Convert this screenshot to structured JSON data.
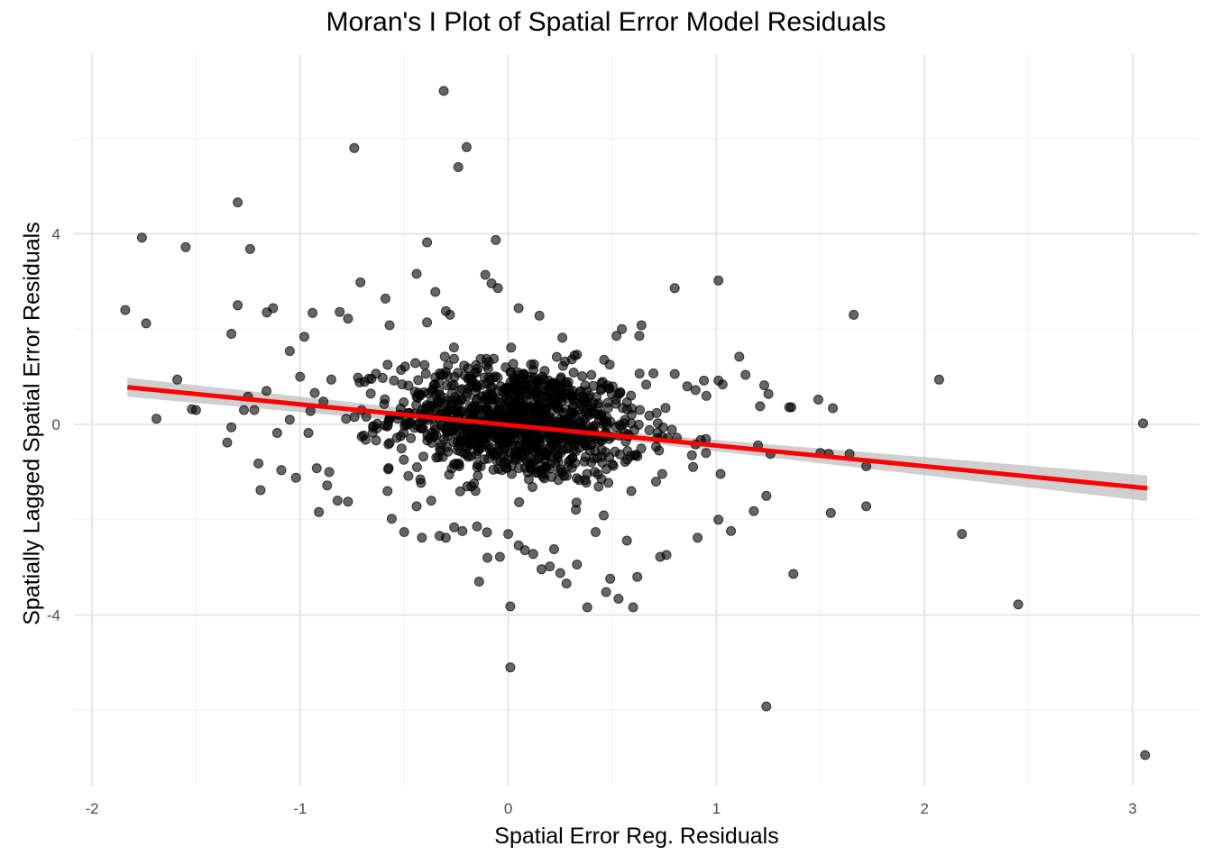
{
  "chart_data": {
    "type": "scatter",
    "title": "Moran's I Plot of Spatial Error Model Residuals",
    "xlabel": "Spatial Error Reg. Residuals",
    "ylabel": "Spatially Lagged Spatial Error Residuals",
    "xlim": [
      -2.0,
      3.15
    ],
    "ylim": [
      -7.65,
      7.65
    ],
    "x_ticks": [
      -2,
      -1,
      0,
      1,
      2,
      3
    ],
    "x_tick_labels": [
      "-2",
      "-1",
      "0",
      "1",
      "2",
      "3"
    ],
    "y_ticks": [
      -4,
      0,
      4
    ],
    "y_tick_labels": [
      "-4",
      "0",
      "4"
    ],
    "grid": true,
    "legend": "none",
    "point_color": "#000000",
    "point_opacity": 0.6,
    "regression": {
      "color": "#ff0000",
      "ci_color": "#bfbfbf",
      "x": [
        -1.83,
        3.07
      ],
      "y": [
        0.78,
        -1.34
      ],
      "ci_halfwidth": [
        0.2,
        0.27
      ]
    },
    "series": [
      {
        "points": [
          [
            -0.31,
            7.0
          ],
          [
            -0.74,
            5.8
          ],
          [
            -0.2,
            5.82
          ],
          [
            -0.24,
            5.4
          ],
          [
            -1.3,
            4.66
          ],
          [
            -1.76,
            3.92
          ],
          [
            -1.55,
            3.72
          ],
          [
            -1.24,
            3.68
          ],
          [
            -0.39,
            3.82
          ],
          [
            -0.06,
            3.87
          ],
          [
            -1.84,
            2.4
          ],
          [
            -1.74,
            2.12
          ],
          [
            -1.3,
            2.5
          ],
          [
            -1.33,
            1.9
          ],
          [
            -1.16,
            2.35
          ],
          [
            -1.13,
            2.44
          ],
          [
            -0.71,
            2.98
          ],
          [
            -0.59,
            2.64
          ],
          [
            -0.44,
            3.16
          ],
          [
            -0.35,
            2.78
          ],
          [
            -0.3,
            2.38
          ],
          [
            -0.28,
            2.3
          ],
          [
            -0.11,
            3.14
          ],
          [
            -0.08,
            2.96
          ],
          [
            -0.05,
            2.86
          ],
          [
            0.05,
            2.44
          ],
          [
            0.15,
            2.28
          ],
          [
            0.8,
            2.86
          ],
          [
            1.01,
            3.02
          ],
          [
            1.66,
            2.3
          ],
          [
            -1.59,
            0.94
          ],
          [
            -1.52,
            0.32
          ],
          [
            -1.69,
            0.12
          ],
          [
            -1.25,
            0.58
          ],
          [
            -1.35,
            -0.38
          ],
          [
            -1.33,
            -0.06
          ],
          [
            -1.2,
            -0.82
          ],
          [
            -1.19,
            -1.38
          ],
          [
            -1.11,
            -0.18
          ],
          [
            -1.09,
            -0.96
          ],
          [
            -1.02,
            -1.12
          ],
          [
            -0.95,
            0.28
          ],
          [
            -0.92,
            -0.92
          ],
          [
            -0.91,
            -1.84
          ],
          [
            -0.87,
            -1.28
          ],
          [
            -0.82,
            -1.6
          ],
          [
            -0.65,
            -0.06
          ],
          [
            -0.58,
            -1.4
          ],
          [
            -0.56,
            -1.98
          ],
          [
            -0.5,
            -2.26
          ],
          [
            -0.44,
            -1.72
          ],
          [
            -0.37,
            -1.6
          ],
          [
            -0.33,
            -2.34
          ],
          [
            -0.3,
            -2.38
          ],
          [
            -0.26,
            -2.16
          ],
          [
            -0.22,
            -2.24
          ],
          [
            -0.15,
            -2.14
          ],
          [
            -0.1,
            -2.8
          ],
          [
            -0.14,
            -3.3
          ],
          [
            -0.04,
            -2.78
          ],
          [
            0.0,
            -2.3
          ],
          [
            0.01,
            -3.82
          ],
          [
            0.01,
            -5.1
          ],
          [
            0.05,
            -2.54
          ],
          [
            0.08,
            -2.64
          ],
          [
            0.12,
            -2.72
          ],
          [
            0.16,
            -3.04
          ],
          [
            0.2,
            -2.98
          ],
          [
            0.22,
            -2.62
          ],
          [
            0.25,
            -3.12
          ],
          [
            0.28,
            -3.34
          ],
          [
            0.33,
            -2.94
          ],
          [
            0.38,
            -3.84
          ],
          [
            0.42,
            -2.26
          ],
          [
            0.47,
            -3.52
          ],
          [
            0.49,
            -3.24
          ],
          [
            0.53,
            -3.66
          ],
          [
            0.57,
            -2.44
          ],
          [
            0.6,
            -3.84
          ],
          [
            0.62,
            -3.2
          ],
          [
            0.73,
            -2.78
          ],
          [
            0.76,
            -2.74
          ],
          [
            0.91,
            -2.38
          ],
          [
            1.01,
            -2.0
          ],
          [
            1.07,
            -2.24
          ],
          [
            1.18,
            -1.82
          ],
          [
            1.24,
            -1.5
          ],
          [
            1.24,
            -5.92
          ],
          [
            1.37,
            -3.14
          ],
          [
            1.55,
            -1.86
          ],
          [
            1.72,
            -1.72
          ],
          [
            1.72,
            -0.88
          ],
          [
            1.64,
            -0.62
          ],
          [
            1.5,
            -0.6
          ],
          [
            1.54,
            -0.62
          ],
          [
            1.36,
            0.36
          ],
          [
            1.35,
            0.36
          ],
          [
            1.49,
            0.52
          ],
          [
            1.56,
            0.34
          ],
          [
            1.23,
            0.82
          ],
          [
            1.25,
            0.64
          ],
          [
            1.21,
            0.38
          ],
          [
            1.14,
            1.04
          ],
          [
            1.11,
            1.42
          ],
          [
            1.01,
            0.92
          ],
          [
            1.03,
            0.84
          ],
          [
            2.07,
            0.94
          ],
          [
            2.18,
            -2.3
          ],
          [
            2.45,
            -3.78
          ],
          [
            3.05,
            0.02
          ],
          [
            3.06,
            -6.94
          ],
          [
            0.8,
            1.06
          ],
          [
            0.64,
            2.08
          ],
          [
            0.63,
            1.86
          ],
          [
            0.52,
            1.86
          ],
          [
            0.26,
            1.82
          ],
          [
            -0.39,
            2.14
          ],
          [
            -0.57,
            2.08
          ],
          [
            -0.77,
            2.22
          ],
          [
            -0.81,
            2.36
          ],
          [
            -0.94,
            2.34
          ],
          [
            -0.98,
            1.84
          ],
          [
            -1.05,
            1.54
          ],
          [
            -1.27,
            0.3
          ],
          [
            -1.22,
            0.3
          ],
          [
            -1.5,
            0.3
          ],
          [
            0.81,
            -0.28
          ],
          [
            0.9,
            -0.42
          ],
          [
            0.95,
            -0.6
          ],
          [
            1.02,
            -1.04
          ],
          [
            0.9,
            0.72
          ],
          [
            0.86,
            0.8
          ],
          [
            0.94,
            0.92
          ],
          [
            1.2,
            -0.44
          ],
          [
            1.26,
            -0.62
          ],
          [
            0.71,
            -1.2
          ],
          [
            0.74,
            -1.04
          ],
          [
            -0.77,
            -1.62
          ],
          [
            -0.86,
            -1.0
          ],
          [
            -0.96,
            -0.18
          ],
          [
            -0.93,
            0.66
          ],
          [
            -0.85,
            0.94
          ],
          [
            -1.05,
            0.1
          ],
          [
            -1.0,
            1.0
          ]
        ],
        "cluster": {
          "count": 1100,
          "x_mean": 0.05,
          "x_sd": 0.3,
          "y_mean": 0.05,
          "y_sd": 0.72
        }
      }
    ]
  }
}
